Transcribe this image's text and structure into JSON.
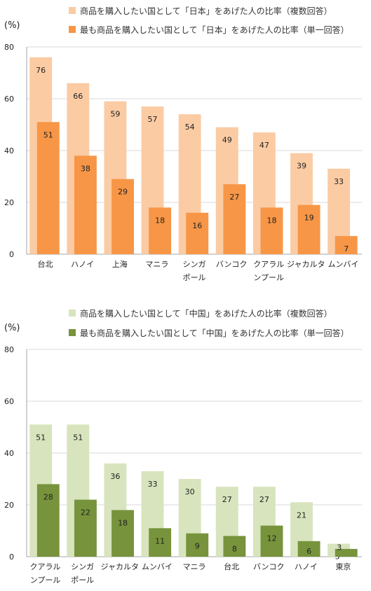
{
  "chart_data": [
    {
      "type": "bar",
      "unit_label": "(%)",
      "ylim": [
        0,
        80
      ],
      "yticks": [
        0,
        20,
        40,
        60,
        80
      ],
      "grid": true,
      "legend_position": "top-right",
      "categories": [
        "台北",
        "ハノイ",
        "上海",
        "マニラ",
        "シンガポール",
        "バンコク",
        "クアラルンプール",
        "ジャカルタ",
        "ムンバイ"
      ],
      "category_lines": [
        [
          "台北"
        ],
        [
          "ハノイ"
        ],
        [
          "上海"
        ],
        [
          "マニラ"
        ],
        [
          "シンガ",
          "ポール"
        ],
        [
          "バンコク"
        ],
        [
          "クアラル",
          "ンプール"
        ],
        [
          "ジャカルタ"
        ],
        [
          "ムンバイ"
        ]
      ],
      "series": [
        {
          "name": "商品を購入したい国として「日本」をあげた人の比率（複数回答）",
          "color": "#FBCBA3",
          "values": [
            76,
            66,
            59,
            57,
            54,
            49,
            47,
            39,
            33
          ]
        },
        {
          "name": "最も商品を購入したい国として「日本」をあげた人の比率（単一回答）",
          "color": "#F79646",
          "values": [
            51,
            38,
            29,
            18,
            16,
            27,
            18,
            19,
            7
          ]
        }
      ]
    },
    {
      "type": "bar",
      "unit_label": "(%)",
      "ylim": [
        0,
        80
      ],
      "yticks": [
        0,
        20,
        40,
        60,
        80
      ],
      "grid": true,
      "legend_position": "top-right",
      "categories": [
        "クアラルンプール",
        "シンガポール",
        "ジャカルタ",
        "ムンバイ",
        "マニラ",
        "台北",
        "バンコク",
        "ハノイ",
        "東京"
      ],
      "category_lines": [
        [
          "クアラル",
          "ンプール"
        ],
        [
          "シンガ",
          "ポール"
        ],
        [
          "ジャカルタ"
        ],
        [
          "ムンバイ"
        ],
        [
          "マニラ"
        ],
        [
          "台北"
        ],
        [
          "バンコク"
        ],
        [
          "ハノイ"
        ],
        [
          "東京"
        ]
      ],
      "series": [
        {
          "name": "商品を購入したい国として「中国」をあげた人の比率（複数回答）",
          "color": "#D7E4BD",
          "values": [
            51,
            51,
            36,
            33,
            30,
            27,
            27,
            21,
            5
          ]
        },
        {
          "name": "最も商品を購入したい国として「中国」をあげた人の比率（単一回答）",
          "color": "#77933C",
          "values": [
            28,
            22,
            18,
            11,
            9,
            8,
            12,
            6,
            3
          ]
        }
      ]
    }
  ]
}
